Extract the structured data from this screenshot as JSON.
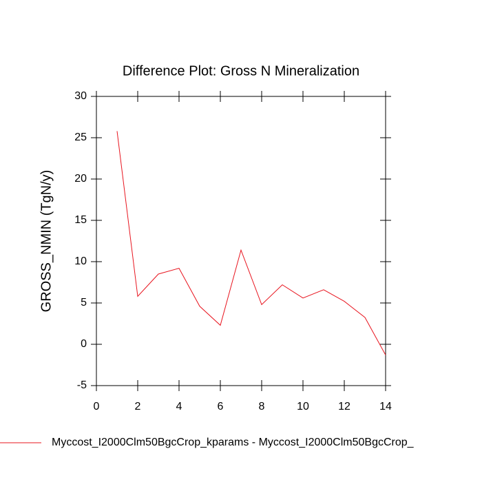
{
  "chart_data": {
    "type": "line",
    "title": "Difference Plot: Gross N Mineralization",
    "y_label": "GROSS_NMIN  (TgN/y)",
    "x": [
      1,
      2,
      3,
      4,
      5,
      6,
      7,
      8,
      9,
      10,
      11,
      12,
      13,
      14
    ],
    "series": [
      {
        "name": "Myccost_I2000Clm50BgcCrop_kparams - Myccost_I2000Clm50BgcCrop_",
        "color": "#e8141e",
        "values": [
          25.8,
          5.8,
          8.5,
          9.2,
          4.6,
          2.3,
          11.4,
          4.8,
          7.2,
          5.6,
          6.6,
          5.2,
          3.25,
          -1.3
        ]
      }
    ],
    "xlim": [
      0,
      14
    ],
    "xticks": [
      0,
      2,
      4,
      6,
      8,
      10,
      12,
      14
    ],
    "ylim": [
      -5,
      30
    ],
    "yticks": [
      -5,
      0,
      5,
      10,
      15,
      20,
      25,
      30
    ],
    "grid": false
  }
}
